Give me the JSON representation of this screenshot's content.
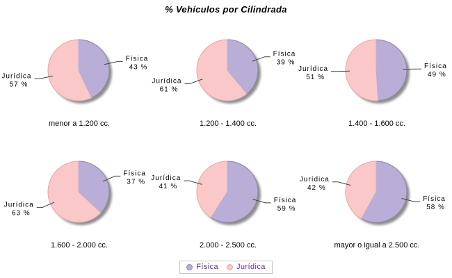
{
  "title": "% Vehículos por Cilindrada",
  "legend": {
    "items": [
      {
        "label": "Física"
      },
      {
        "label": "Jurídica"
      }
    ]
  },
  "chart_data": {
    "type": "pie",
    "title": "% Vehículos por Cilindrada",
    "series_names": [
      "Física",
      "Jurídica"
    ],
    "legend_position": "bottom",
    "units": "%",
    "colors": {
      "fisica_fill": "#b9aed7",
      "fisica_stroke": "#8d82ae",
      "juridica_fill": "#fac8c8",
      "juridica_stroke": "#e0a8a8",
      "shadow": "#8f8f8f",
      "leader_line": "#404040",
      "label_text": "#000000",
      "legend_text": "#5c2d91",
      "legend_border": "#c6c6c6"
    },
    "pies": [
      {
        "category": "menor a 1.200 cc.",
        "slices": [
          {
            "name": "Física",
            "value": 43,
            "label": "43 %"
          },
          {
            "name": "Jurídica",
            "value": 57,
            "label": "57 %"
          }
        ]
      },
      {
        "category": "1.200 - 1.400 cc.",
        "slices": [
          {
            "name": "Física",
            "value": 39,
            "label": "39 %"
          },
          {
            "name": "Jurídica",
            "value": 61,
            "label": "61 %"
          }
        ]
      },
      {
        "category": "1.400 - 1.600 cc.",
        "slices": [
          {
            "name": "Física",
            "value": 49,
            "label": "49 %"
          },
          {
            "name": "Jurídica",
            "value": 51,
            "label": "51 %"
          }
        ]
      },
      {
        "category": "1.600 - 2.000 cc.",
        "slices": [
          {
            "name": "Física",
            "value": 37,
            "label": "37 %"
          },
          {
            "name": "Jurídica",
            "value": 63,
            "label": "63 %"
          }
        ]
      },
      {
        "category": "2.000 - 2.500 cc.",
        "slices": [
          {
            "name": "Física",
            "value": 59,
            "label": "59 %"
          },
          {
            "name": "Jurídica",
            "value": 41,
            "label": "41 %"
          }
        ]
      },
      {
        "category": "mayor o igual a 2.500 cc.",
        "slices": [
          {
            "name": "Física",
            "value": 58,
            "label": "58 %"
          },
          {
            "name": "Jurídica",
            "value": 42,
            "label": "42 %"
          }
        ]
      }
    ]
  }
}
